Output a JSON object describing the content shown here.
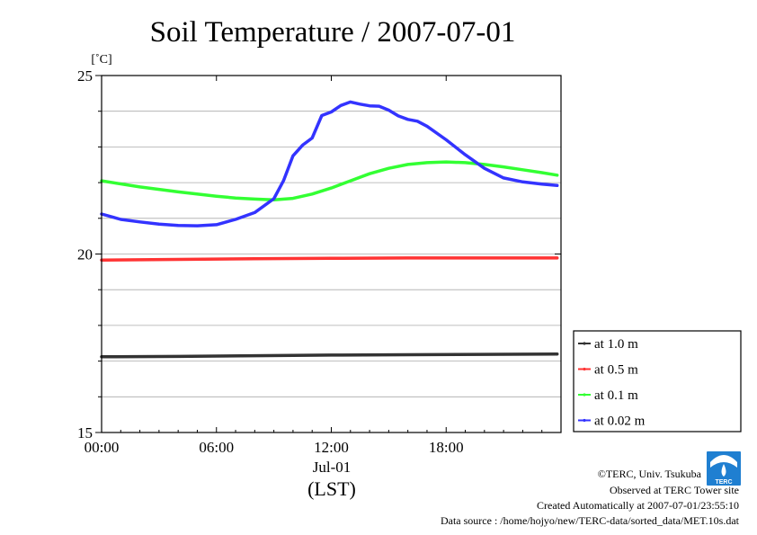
{
  "chart_data": {
    "type": "line",
    "title": "Soil Temperature / 2007-07-01",
    "ylabel": "[˚C]",
    "xlabel": "(LST)",
    "date_label": "Jul-01",
    "x_unit": "hour",
    "xlim": [
      0,
      24
    ],
    "ylim": [
      15,
      25
    ],
    "x_ticks": [
      0,
      6,
      12,
      18
    ],
    "x_tick_labels": [
      "00:00",
      "06:00",
      "12:00",
      "18:00"
    ],
    "y_tick_labels": [
      {
        "value": 25,
        "label": "25"
      },
      {
        "value": 20,
        "label": "20"
      },
      {
        "value": 15,
        "label": "15"
      }
    ],
    "y_minor_ticks": [
      16,
      17,
      18,
      19,
      21,
      22,
      23,
      24
    ],
    "grid": true,
    "legend_position": "right-bottom",
    "series": [
      {
        "name": "at 1.0 m",
        "color": "#333333",
        "x": [
          0,
          4,
          8,
          12,
          16,
          20,
          23.8
        ],
        "y": [
          17.12,
          17.13,
          17.15,
          17.17,
          17.18,
          17.19,
          17.2
        ]
      },
      {
        "name": "at 0.5 m",
        "color": "#ff3333",
        "x": [
          0,
          4,
          8,
          12,
          16,
          20,
          23.8
        ],
        "y": [
          19.83,
          19.85,
          19.87,
          19.88,
          19.89,
          19.89,
          19.89
        ]
      },
      {
        "name": "at 0.1 m",
        "color": "#33ff33",
        "x": [
          0,
          2,
          4,
          6,
          7,
          8,
          9,
          10,
          11,
          12,
          13,
          14,
          15,
          16,
          17,
          18,
          19,
          20,
          21,
          22,
          23,
          23.8
        ],
        "y": [
          22.05,
          21.88,
          21.74,
          21.62,
          21.57,
          21.54,
          21.52,
          21.56,
          21.68,
          21.85,
          22.05,
          22.25,
          22.4,
          22.51,
          22.56,
          22.58,
          22.56,
          22.51,
          22.44,
          22.36,
          22.28,
          22.21
        ]
      },
      {
        "name": "at 0.02 m",
        "color": "#3333ff",
        "x": [
          0,
          1,
          2,
          3,
          4,
          5,
          6,
          7,
          8,
          9,
          9.5,
          10,
          10.5,
          11,
          11.5,
          12,
          12.5,
          13,
          13.5,
          14,
          14.5,
          15,
          15.5,
          16,
          16.5,
          17,
          18,
          19,
          20,
          21,
          22,
          23,
          23.8
        ],
        "y": [
          21.12,
          20.97,
          20.9,
          20.84,
          20.8,
          20.79,
          20.82,
          20.97,
          21.16,
          21.55,
          22.05,
          22.75,
          23.05,
          23.25,
          23.88,
          23.98,
          24.16,
          24.26,
          24.2,
          24.15,
          24.14,
          24.03,
          23.87,
          23.77,
          23.72,
          23.58,
          23.2,
          22.78,
          22.4,
          22.13,
          22.02,
          21.96,
          21.92
        ]
      }
    ]
  },
  "credits": {
    "copyright": "©TERC, Univ. Tsukuba",
    "observed": "Observed at TERC Tower site",
    "created": "Created Automatically at 2007-07-01/23:55:10",
    "source": "Data source : /home/hojyo/new/TERC-data/sorted_data/MET.10s.dat"
  },
  "logo": {
    "text": "TERC",
    "icon": "terc-logo-icon",
    "color": "#1f7fd1"
  }
}
